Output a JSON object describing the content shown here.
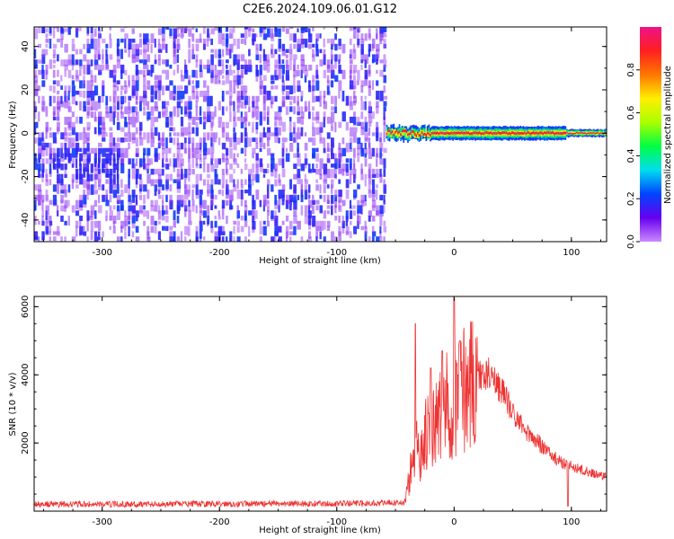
{
  "title": "C2E6.2024.109.06.01.G12",
  "chart_data": [
    {
      "type": "heatmap",
      "xlabel": "Height of straight line (km)",
      "ylabel": "Frequency (Hz)",
      "xlim": [
        -358,
        130
      ],
      "ylim": [
        -50,
        49
      ],
      "xticks": [
        -300,
        -200,
        -100,
        0,
        100
      ],
      "yticks": [
        -40,
        -20,
        0,
        20,
        40
      ],
      "noise_region_km": [
        -358,
        -58
      ],
      "signal_region_km": [
        -58,
        130
      ],
      "signal_frequency_hz": 0,
      "colorbar": {
        "label": "Normalized spectral amplitude",
        "range": [
          0,
          1
        ],
        "ticks": [
          0.0,
          0.2,
          0.4,
          0.6,
          0.8
        ],
        "colormap": [
          "#cc88ff",
          "#6600ee",
          "#0044ff",
          "#00ddee",
          "#00ff44",
          "#aaff00",
          "#ffee00",
          "#ff7700",
          "#ff2020",
          "#ee1188"
        ]
      },
      "grid": false
    },
    {
      "type": "line",
      "xlabel": "Height of straight line (km)",
      "ylabel": "SNR (10 * v/v)",
      "xlim": [
        -358,
        130
      ],
      "ylim": [
        0,
        6300
      ],
      "xticks": [
        -300,
        -200,
        -100,
        0,
        100
      ],
      "yticks": [
        2000,
        4000,
        6000
      ],
      "series_color": "#ee3333",
      "profile": [
        {
          "x": -358,
          "y": 200
        },
        {
          "x": -100,
          "y": 220
        },
        {
          "x": -42,
          "y": 250
        },
        {
          "x": -35,
          "y": 1500
        },
        {
          "x": -25,
          "y": 2200
        },
        {
          "x": -15,
          "y": 2600
        },
        {
          "x": -5,
          "y": 3100
        },
        {
          "x": 0,
          "y": 3300
        },
        {
          "x": 10,
          "y": 3700
        },
        {
          "x": 20,
          "y": 3950
        },
        {
          "x": 30,
          "y": 4050
        },
        {
          "x": 40,
          "y": 3600
        },
        {
          "x": 50,
          "y": 2900
        },
        {
          "x": 60,
          "y": 2400
        },
        {
          "x": 75,
          "y": 1900
        },
        {
          "x": 90,
          "y": 1450
        },
        {
          "x": 110,
          "y": 1200
        },
        {
          "x": 130,
          "y": 1000
        }
      ],
      "spikes": [
        {
          "x": -33,
          "y": 5500
        },
        {
          "x": -20,
          "y": 4200
        },
        {
          "x": -10,
          "y": 4700
        },
        {
          "x": 0,
          "y": 6250
        },
        {
          "x": 5,
          "y": 5000
        }
      ],
      "grid": false
    }
  ]
}
